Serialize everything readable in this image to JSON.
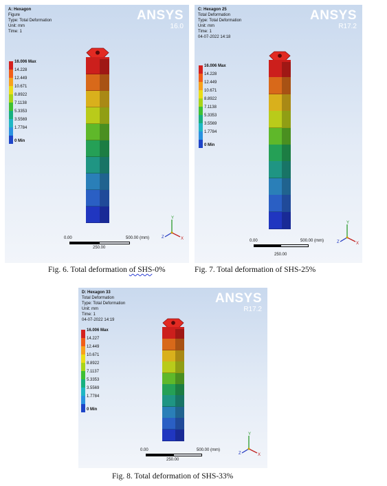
{
  "legend_colors": [
    "#d4211e",
    "#f15e18",
    "#f7a21c",
    "#eadd18",
    "#a8d418",
    "#3fc033",
    "#17b07f",
    "#1fb6c4",
    "#2a92e0",
    "#1d44c8"
  ],
  "column_colors": [
    "#cc1f1c",
    "#d8691a",
    "#d9b01c",
    "#b9cb1a",
    "#5fb82a",
    "#25a056",
    "#1f9583",
    "#2a7fb8",
    "#2a5fc4",
    "#2036c0"
  ],
  "figures": [
    {
      "title": "A: Hexagon",
      "info_lines": [
        "Figure",
        "Type: Total Deformation",
        "Unit: mm",
        "Time: 1"
      ],
      "logo_name": "ANSYS",
      "logo_version": "16.0",
      "legend_labels": [
        "16.006 Max",
        "14.228",
        "12.449",
        "10.671",
        "8.8922",
        "7.1138",
        "5.3353",
        "3.5569",
        "1.7784",
        "0 Min"
      ],
      "scale_start": "0.00",
      "scale_end": "500.00 (mm)",
      "scale_mid": "250.00",
      "caption_prefix": "Fig. 6. Total deformation ",
      "caption_underlined": "of  SHS",
      "caption_suffix": "-0%"
    },
    {
      "title": "C: Hexagon 25",
      "info_lines": [
        "Total Deformation",
        "Type: Total Deformation",
        "Unit: mm",
        "Time: 1",
        "04-07-2022 14:18"
      ],
      "logo_name": "ANSYS",
      "logo_version": "R17.2",
      "legend_labels": [
        "16.006 Max",
        "14.228",
        "12.449",
        "10.671",
        "8.8922",
        "7.1138",
        "5.3353",
        "3.5569",
        "1.7784",
        "0 Min"
      ],
      "scale_start": "0.00",
      "scale_end": "500.00 (mm)",
      "scale_mid": "250.00",
      "caption": "Fig. 7. Total deformation of SHS-25%"
    },
    {
      "title": "D: Hexagon 33",
      "info_lines": [
        "Total Deformation",
        "Type: Total Deformation",
        "Unit: mm",
        "Time: 1",
        "04-07-2022 14:19"
      ],
      "logo_name": "ANSYS",
      "logo_version": "R17.2",
      "legend_labels": [
        "16.006 Max",
        "14.227",
        "12.449",
        "10.671",
        "8.8922",
        "7.1137",
        "5.3353",
        "3.5569",
        "1.7784",
        "0 Min"
      ],
      "scale_start": "0.00",
      "scale_end": "500.00 (mm)",
      "scale_mid": "250.00",
      "caption": "Fig. 8. Total deformation of SHS-33%"
    }
  ],
  "axis_labels": {
    "x": "X",
    "y": "Y",
    "z": "Z"
  }
}
